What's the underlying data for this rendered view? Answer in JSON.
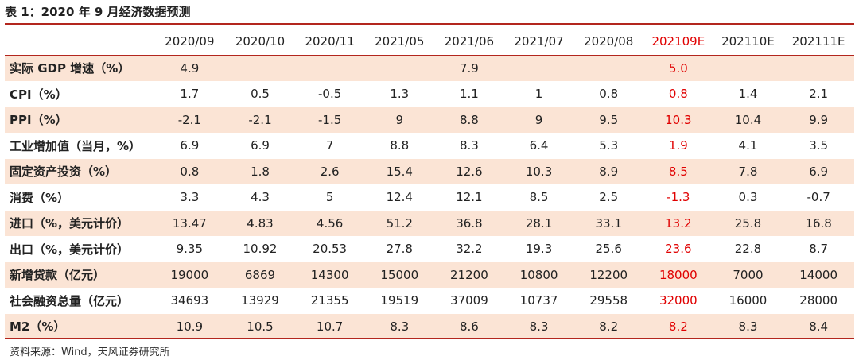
{
  "title": "表 1：2020 年 9 月经济数据预测",
  "highlight_color": "#e00000",
  "shade_color": "#fbe4d5",
  "header": [
    "",
    "2020/09",
    "2020/10",
    "2020/11",
    "2021/05",
    "2021/06",
    "2021/07",
    "2020/08",
    "202109E",
    "202110E",
    "202111E"
  ],
  "highlight_column": 8,
  "rows": [
    {
      "cells": [
        "实际 GDP 增速（%）",
        "4.9",
        "",
        "",
        "",
        "7.9",
        "",
        "",
        "5.0",
        "",
        ""
      ],
      "shaded": true
    },
    {
      "cells": [
        "CPI（%）",
        "1.7",
        "0.5",
        "-0.5",
        "1.3",
        "1.1",
        "1",
        "0.8",
        "0.8",
        "1.4",
        "2.1"
      ],
      "shaded": false
    },
    {
      "cells": [
        "PPI（%）",
        "-2.1",
        "-2.1",
        "-1.5",
        "9",
        "8.8",
        "9",
        "9.5",
        "10.3",
        "10.4",
        "9.9"
      ],
      "shaded": true
    },
    {
      "cells": [
        "工业增加值（当月，%）",
        "6.9",
        "6.9",
        "7",
        "8.8",
        "8.3",
        "6.4",
        "5.3",
        "1.9",
        "4.1",
        "3.5"
      ],
      "shaded": false
    },
    {
      "cells": [
        "固定资产投资（%）",
        "0.8",
        "1.8",
        "2.6",
        "15.4",
        "12.6",
        "10.3",
        "8.9",
        "8.5",
        "7.8",
        "6.9"
      ],
      "shaded": true
    },
    {
      "cells": [
        "消费（%）",
        "3.3",
        "4.3",
        "5",
        "12.4",
        "12.1",
        "8.5",
        "2.5",
        "-1.3",
        "0.3",
        "-0.7"
      ],
      "shaded": false
    },
    {
      "cells": [
        "进口（%，美元计价）",
        "13.47",
        "4.83",
        "4.56",
        "51.2",
        "36.8",
        "28.1",
        "33.1",
        "13.2",
        "25.8",
        "16.8"
      ],
      "shaded": true
    },
    {
      "cells": [
        "出口（%，美元计价）",
        "9.35",
        "10.92",
        "20.53",
        "27.8",
        "32.2",
        "19.3",
        "25.6",
        "23.6",
        "22.8",
        "8.7"
      ],
      "shaded": false
    },
    {
      "cells": [
        "新增贷款（亿元）",
        "19000",
        "6869",
        "14300",
        "15000",
        "21200",
        "10800",
        "12200",
        "18000",
        "7000",
        "14000"
      ],
      "shaded": true
    },
    {
      "cells": [
        "社会融资总量（亿元）",
        "34693",
        "13929",
        "21355",
        "19519",
        "37009",
        "10737",
        "29558",
        "32000",
        "16000",
        "28000"
      ],
      "shaded": false
    },
    {
      "cells": [
        "M2（%）",
        "10.9",
        "10.5",
        "10.7",
        "8.3",
        "8.6",
        "8.3",
        "8.2",
        "8.2",
        "8.3",
        "8.4"
      ],
      "shaded": true
    }
  ],
  "source": "资料来源：Wind，天风证券研究所"
}
